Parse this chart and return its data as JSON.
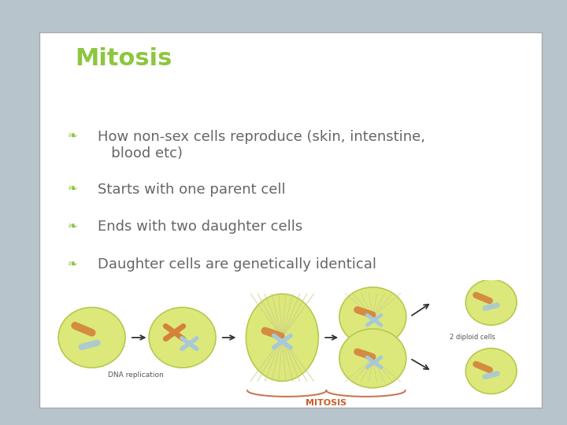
{
  "title": "Mitosis",
  "title_color": "#8DC63F",
  "title_fontsize": 22,
  "bullet_color": "#8DC63F",
  "text_color": "#666666",
  "text_fontsize": 13,
  "bullets": [
    "How non-sex cells reproduce (skin, intenstine,\n   blood etc)",
    "Starts with one parent cell",
    "Ends with two daughter cells",
    "Daughter cells are genetically identical"
  ],
  "bg_outer": "#b8c4cc",
  "bg_slide": "#ffffff",
  "slide_edge_color": "#aaaaaa",
  "header_color": "#5bb8c4",
  "mitosis_label_color": "#c8602a",
  "dna_label_color": "#555555",
  "diploid_label_color": "#555555",
  "cell_color": "#dde87a",
  "cell_edge": "#b8c850",
  "chrom_orange": "#d4823a",
  "chrom_blue": "#a8c8d8"
}
